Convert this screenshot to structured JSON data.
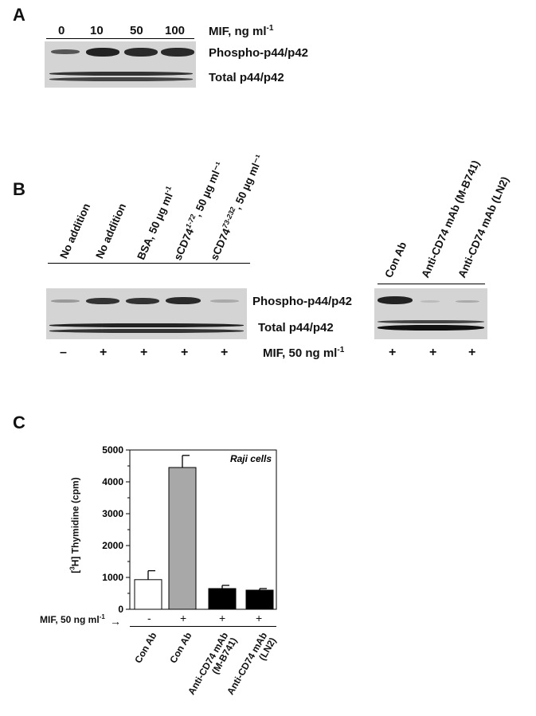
{
  "panel_a": {
    "letter": "A",
    "doses": [
      "0",
      "10",
      "50",
      "100"
    ],
    "mif_label": "MIF, ng ml",
    "mif_sup": "-1",
    "row1": "Phospho-p44/p42",
    "row2": "Total p44/p42"
  },
  "panel_b": {
    "letter": "B",
    "lanes_left": [
      {
        "text": "No addition",
        "sup": "",
        "rest": ""
      },
      {
        "text": "No addition",
        "sup": "",
        "rest": ""
      },
      {
        "text": "BSA, 50 µg ml",
        "sup": "-1",
        "rest": ""
      },
      {
        "text": "sCD74",
        "sup": "1-72",
        "rest": ", 50 µg ml⁻¹"
      },
      {
        "text": "sCD74",
        "sup": "73-232",
        "rest": ", 50 µg ml⁻¹"
      }
    ],
    "lanes_right": [
      "Con Ab",
      "Anti-CD74 mAb (M-B741)",
      "Anti-CD74 mAb (LN2)"
    ],
    "row1": "Phospho-p44/p42",
    "row2": "Total p44/p42",
    "mif_label": "MIF, 50 ng ml",
    "mif_sup": "-1",
    "signs_left": [
      "–",
      "+",
      "+",
      "+",
      "+"
    ],
    "signs_right": [
      "+",
      "+",
      "+"
    ]
  },
  "panel_c": {
    "letter": "C",
    "mif_row_label": "MIF, 50 ng ml",
    "mif_row_sup": "-1",
    "mif_signs": [
      "-",
      "+",
      "+",
      "+"
    ],
    "groups": [
      "Con Ab",
      "Con Ab",
      "Anti-CD74 mAb\n(M-B741)",
      "Anti-CD74 mAb\n(LN2)"
    ]
  },
  "chart_data": {
    "type": "bar",
    "title": "Raji cells",
    "ylabel_prefix": "[",
    "ylabel_sup": "3",
    "ylabel_rest": "H] Thymidine (cpm)",
    "ylim": [
      0,
      5000
    ],
    "yticks": [
      "0",
      "1000",
      "2000",
      "3000",
      "4000",
      "5000"
    ],
    "values": [
      930,
      4450,
      650,
      600
    ],
    "errors": [
      280,
      380,
      100,
      50
    ],
    "colors": [
      "#ffffff",
      "#a8a8a8",
      "#000000",
      "#000000"
    ]
  }
}
